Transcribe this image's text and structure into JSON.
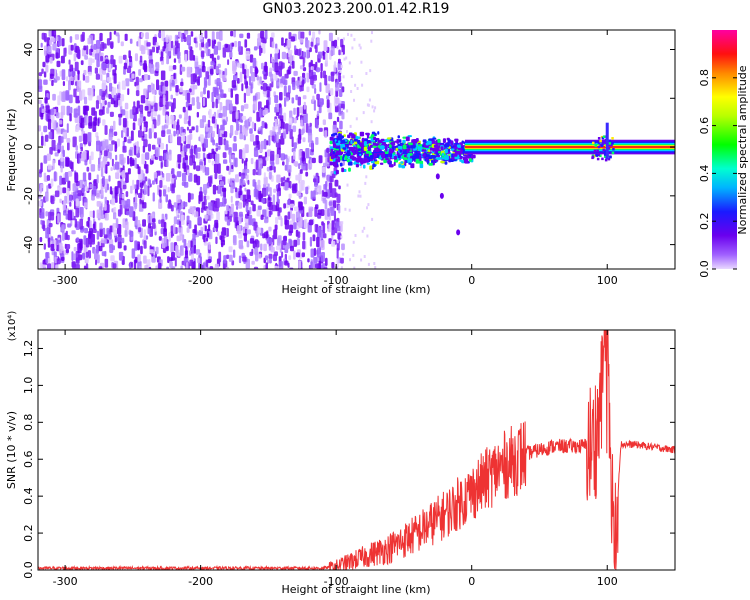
{
  "title": "GN03.2023.200.01.42.R19",
  "chart_data": [
    {
      "type": "heatmap",
      "xlabel": "Height of straight line (km)",
      "ylabel": "Frequency (Hz)",
      "xlim": [
        -320,
        150
      ],
      "ylim": [
        -50,
        48
      ],
      "x_ticks": [
        "-300",
        "-200",
        "-100",
        "0",
        "100"
      ],
      "y_ticks": [
        "-40",
        "-20",
        "0",
        "20",
        "40"
      ],
      "colorbar": {
        "label": "Normalized spectral amplitude",
        "range": [
          0,
          1
        ],
        "ticks": [
          "0.0",
          "0.2",
          "0.4",
          "0.6",
          "0.8"
        ],
        "colormap": "rainbow (purple-blue-cyan-green-yellow-red-magenta)"
      },
      "features": {
        "noise_region_x": [
          -320,
          -100
        ],
        "signal_band_center_hz": 0,
        "signal_band_x": [
          -105,
          150
        ],
        "spike_x": 100
      }
    },
    {
      "type": "line",
      "xlabel": "Height of straight line (km)",
      "ylabel": "SNR (10 * v/v)",
      "yscale_label": "(x10⁴)",
      "xlim": [
        -320,
        150
      ],
      "ylim": [
        0,
        1.3
      ],
      "x_ticks": [
        "-300",
        "-200",
        "-100",
        "0",
        "100"
      ],
      "y_ticks": [
        "0.0",
        "0.2",
        "0.4",
        "0.6",
        "0.8",
        "1.0",
        "1.2"
      ],
      "line_color": "#ee3333",
      "series": [
        {
          "name": "",
          "x": [
            -320,
            -250,
            -200,
            -150,
            -110,
            -100,
            -80,
            -60,
            -40,
            -20,
            0,
            20,
            40,
            60,
            80,
            90,
            95,
            100,
            105,
            110,
            120,
            150
          ],
          "y": [
            0.01,
            0.01,
            0.01,
            0.01,
            0.01,
            0.02,
            0.07,
            0.12,
            0.2,
            0.3,
            0.42,
            0.55,
            0.63,
            0.67,
            0.67,
            0.68,
            0.85,
            1.3,
            0.05,
            0.68,
            0.68,
            0.65
          ]
        }
      ]
    }
  ]
}
